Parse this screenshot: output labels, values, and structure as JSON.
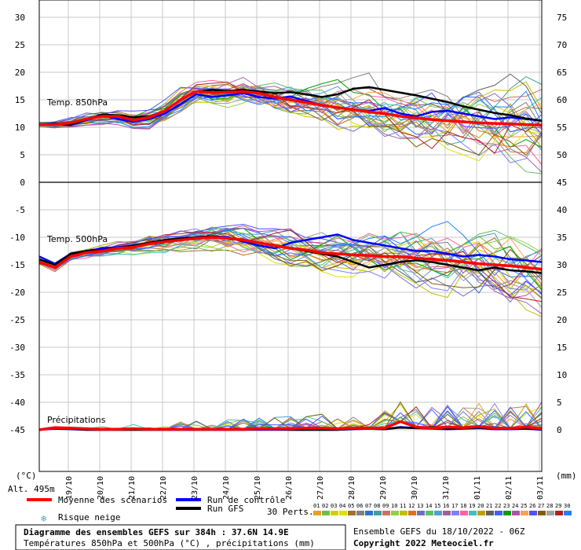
{
  "chart_data": {
    "type": "line",
    "title": "Diagramme des ensembles GEFS sur 384h : 37.6N 14.9E",
    "subtitle": "Températures 850hPa et 500hPa (°C) , précipitations (mm)",
    "left_axis": {
      "unit": "(°C)",
      "ticks": [
        30,
        25,
        20,
        15,
        10,
        5,
        0,
        -5,
        -10,
        -15,
        -20,
        -25,
        -30,
        -35,
        -40,
        -45
      ]
    },
    "right_axis": {
      "unit": "(mm)",
      "ticks": [
        75,
        70,
        65,
        60,
        55,
        50,
        45,
        40,
        35,
        30,
        25,
        20,
        15,
        10,
        5,
        0
      ]
    },
    "x_ticks": [
      "19/10",
      "20/10",
      "21/10",
      "22/10",
      "23/10",
      "24/10",
      "25/10",
      "26/10",
      "27/10",
      "28/10",
      "29/10",
      "30/10",
      "31/10",
      "01/11",
      "02/11",
      "03/11"
    ],
    "altitude_label": "Alt. 495m",
    "grid": true,
    "panels": [
      {
        "name": "Temp. 850hPa"
      },
      {
        "name": "Temp. 500hPa"
      },
      {
        "name": "Précipitations"
      }
    ],
    "series": [
      {
        "name": "Moyenne des scénarios",
        "color": "#ff0000",
        "t850": [
          10.5,
          10.5,
          10.8,
          11.5,
          12,
          12,
          11.3,
          11.8,
          13,
          15,
          16.5,
          16.3,
          16.4,
          16.5,
          16.2,
          15.5,
          15,
          14.5,
          14,
          13.6,
          13.2,
          12.8,
          12.5,
          12,
          11.7,
          11.4,
          11.2,
          11,
          10.8,
          10.7,
          10.6,
          10.5,
          10.4
        ],
        "t500": [
          -14.5,
          -15.5,
          -13.5,
          -12.8,
          -12.5,
          -12,
          -11.8,
          -11.2,
          -10.8,
          -10.5,
          -10.2,
          -10,
          -10.2,
          -10.5,
          -11,
          -11.5,
          -12,
          -12.3,
          -12.8,
          -13,
          -13.2,
          -13.3,
          -13.5,
          -13.5,
          -13.8,
          -14,
          -14.2,
          -14.5,
          -14.8,
          -15,
          -15.2,
          -15.5,
          -15.8
        ],
        "precip": [
          0,
          0.4,
          0.3,
          0.2,
          0.1,
          0.1,
          0.2,
          0.1,
          0.1,
          0.1,
          0.1,
          0.1,
          0.1,
          0.1,
          0.2,
          0.2,
          0.2,
          0.3,
          0.3,
          0.2,
          0.3,
          0.3,
          0.3,
          1.5,
          0.5,
          0.3,
          0.5,
          0.4,
          0.6,
          0.3,
          0.3,
          0.5,
          0.2
        ]
      },
      {
        "name": "Run de contrôle",
        "color": "#0000ff",
        "t850": [
          10.5,
          10.6,
          10.4,
          11.3,
          12.2,
          11.5,
          11,
          11.5,
          12.5,
          14.2,
          16,
          15.5,
          15.8,
          16.2,
          15.5,
          15.2,
          15.6,
          14.8,
          14,
          13.5,
          13.2,
          13,
          13.5,
          12.5,
          12,
          12.8,
          13,
          12.5,
          12,
          11.5,
          11.8,
          11.5,
          11.2
        ],
        "t500": [
          -13.5,
          -14.8,
          -13,
          -12.5,
          -12,
          -11.8,
          -11.5,
          -11,
          -10.5,
          -10.2,
          -10,
          -9.8,
          -10,
          -10.8,
          -11.5,
          -12,
          -11,
          -10.5,
          -10,
          -9.5,
          -10.5,
          -11,
          -11.5,
          -12,
          -12.5,
          -12.5,
          -13,
          -13.5,
          -13.2,
          -13.5,
          -14,
          -14.2,
          -14.5
        ],
        "precip": [
          0,
          0.2,
          0.1,
          0,
          0,
          0,
          0,
          0,
          0,
          0,
          0,
          0,
          0,
          0,
          0,
          0,
          0,
          0,
          0,
          0,
          0.1,
          0.2,
          0.1,
          0.5,
          0.3,
          0.2,
          0.1,
          0.2,
          0.3,
          0.1,
          0.1,
          0.2,
          0
        ]
      },
      {
        "name": "Run GFS",
        "color": "#000000",
        "t850": [
          10.5,
          10.7,
          10.5,
          11.5,
          12.3,
          12.2,
          11.8,
          12,
          13,
          15,
          16.5,
          16.8,
          16.6,
          16.8,
          16.5,
          16.2,
          16.4,
          16,
          15.5,
          16,
          17,
          17.3,
          16.8,
          16.3,
          15.8,
          15.2,
          14.6,
          13.8,
          13.2,
          12.6,
          12.2,
          11.6,
          11.2
        ],
        "t500": [
          -14,
          -15,
          -13,
          -12.5,
          -12.3,
          -12,
          -11.5,
          -11,
          -10.5,
          -10.2,
          -10,
          -9.8,
          -10.2,
          -10.5,
          -11,
          -11.5,
          -12,
          -12.5,
          -13,
          -13.5,
          -14.5,
          -15.5,
          -15,
          -14.5,
          -14.2,
          -14.5,
          -15,
          -15.5,
          -16,
          -15.5,
          -16,
          -16.2,
          -16.5
        ],
        "precip": [
          0,
          0.3,
          0.2,
          0,
          0,
          0,
          0,
          0,
          0,
          0,
          0,
          0,
          0,
          0,
          0.1,
          0.1,
          0,
          0,
          0,
          0,
          0.2,
          0.2,
          0.1,
          0.4,
          0.3,
          0.5,
          0.2,
          0.3,
          0.4,
          0.2,
          0.3,
          0.2,
          0.1
        ]
      },
      {
        "name": "Risque neige",
        "color": "#4aa3df"
      }
    ],
    "perturbations": {
      "label": "30 Perts.",
      "ids": [
        "01",
        "02",
        "03",
        "04",
        "05",
        "06",
        "07",
        "08",
        "09",
        "10",
        "11",
        "12",
        "13",
        "14",
        "15",
        "16",
        "17",
        "18",
        "19",
        "20",
        "21",
        "22",
        "23",
        "24",
        "25",
        "26",
        "27",
        "28",
        "29",
        "30"
      ],
      "colors": [
        "#e8a020",
        "#70c040",
        "#d0d000",
        "#e0e000",
        "#a07030",
        "#808080",
        "#3070d0",
        "#40a0a0",
        "#d07060",
        "#90d040",
        "#c0c000",
        "#e07020",
        "#7070c0",
        "#60c060",
        "#50a0d0",
        "#a060a0",
        "#8080ff",
        "#ff60a0",
        "#40c0c0",
        "#c0a000",
        "#606060",
        "#4060ff",
        "#00a000",
        "#b050b0",
        "#ffa050",
        "#5050ff",
        "#806000",
        "#a0a0a0",
        "#b02020",
        "#2080ff"
      ]
    }
  },
  "footer": {
    "ensemble_run": "Ensemble GEFS du 18/10/2022 - 06Z",
    "copyright": "Copyright 2022 Meteociel.fr"
  }
}
